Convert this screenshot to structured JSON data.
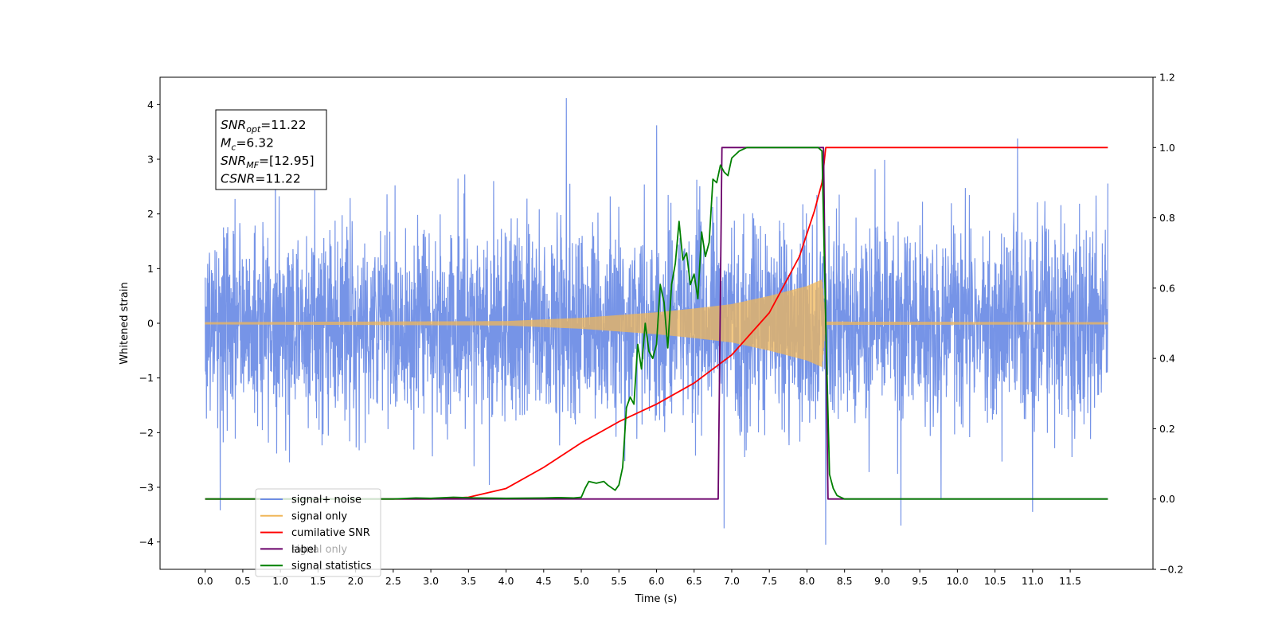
{
  "chart_data": {
    "type": "line",
    "xlabel": "Time (s)",
    "ylabel_left": "Whitened strain",
    "ylabel_right": "",
    "xlim": [
      -0.6,
      12.6
    ],
    "ylim_left": [
      -4.5,
      4.5
    ],
    "ylim_right": [
      -0.2,
      1.2
    ],
    "x_ticks": [
      0.0,
      0.5,
      1.0,
      1.5,
      2.0,
      2.5,
      3.0,
      3.5,
      4.0,
      4.5,
      5.0,
      5.5,
      6.0,
      6.5,
      7.0,
      7.5,
      8.0,
      8.5,
      9.0,
      9.5,
      10.0,
      10.5,
      11.0,
      11.5
    ],
    "x_tick_labels": [
      "0.0",
      "0.5",
      "1.0",
      "1.5",
      "2.0",
      "2.5",
      "3.0",
      "3.5",
      "4.0",
      "4.5",
      "5.0",
      "5.5",
      "6.0",
      "6.5",
      "7.0",
      "7.5",
      "8.0",
      "8.5",
      "9.0",
      "9.5",
      "10.0",
      "10.5",
      "11.0",
      "11.5"
    ],
    "y_ticks_left": [
      -4,
      -3,
      -2,
      -1,
      0,
      1,
      2,
      3,
      4
    ],
    "y_tick_labels_left": [
      "−4",
      "−3",
      "−2",
      "−1",
      "0",
      "1",
      "2",
      "3",
      "4"
    ],
    "y_ticks_right": [
      -0.2,
      0.0,
      0.2,
      0.4,
      0.6,
      0.8,
      1.0,
      1.2
    ],
    "y_tick_labels_right": [
      "−0.2",
      "0.0",
      "0.2",
      "0.4",
      "0.6",
      "0.8",
      "1.0",
      "1.2"
    ],
    "grid": false,
    "legend_position": "bottom-left",
    "annotation": {
      "lines": [
        {
          "sym": "SNR",
          "sub": "opt",
          "value": "=11.22"
        },
        {
          "sym": "M",
          "sub": "c",
          "value": "=6.32"
        },
        {
          "sym": "SNR",
          "sub": "MF",
          "value": "=[12.95]"
        },
        {
          "sym": "CSNR",
          "sub": "",
          "value": "=11.22"
        }
      ]
    },
    "series": [
      {
        "name": "signal+ noise",
        "axis": "left",
        "color": "#6f8ee6",
        "style": "noise",
        "x_range": [
          0.0,
          12.0
        ],
        "sigma": 0.9,
        "spikes": [
          [
            0.2,
            -3.42
          ],
          [
            4.8,
            4.12
          ],
          [
            6.0,
            3.62
          ],
          [
            6.9,
            -3.75
          ],
          [
            8.25,
            -4.05
          ],
          [
            9.25,
            -3.7
          ],
          [
            10.8,
            3.38
          ],
          [
            11.0,
            -3.45
          ]
        ]
      },
      {
        "name": "signal only",
        "axis": "left",
        "color": "#f0b75a",
        "style": "chirp",
        "envelope": {
          "t": [
            0.0,
            4.0,
            5.0,
            5.5,
            6.0,
            6.5,
            7.0,
            7.5,
            8.0,
            8.2,
            8.25,
            12.0
          ],
          "amp": [
            0.02,
            0.04,
            0.1,
            0.15,
            0.2,
            0.27,
            0.35,
            0.5,
            0.68,
            0.8,
            0.03,
            0.02
          ]
        }
      },
      {
        "name": "cumilative SNR",
        "axis": "right",
        "color": "#ff0000",
        "x": [
          0.0,
          3.0,
          3.5,
          4.0,
          4.5,
          5.0,
          5.5,
          6.0,
          6.5,
          7.0,
          7.5,
          7.9,
          8.1,
          8.2,
          8.25,
          12.0
        ],
        "y": [
          0.0,
          0.0,
          0.005,
          0.03,
          0.09,
          0.16,
          0.22,
          0.27,
          0.33,
          0.41,
          0.53,
          0.69,
          0.82,
          0.9,
          1.0,
          1.0
        ]
      },
      {
        "name": "label",
        "axis": "right",
        "color": "#6a006a",
        "x": [
          0.0,
          6.82,
          6.87,
          8.22,
          8.28,
          12.0
        ],
        "y": [
          0.0,
          0.0,
          1.0,
          1.0,
          0.0,
          0.0
        ]
      },
      {
        "name": "signal statistics",
        "axis": "right",
        "color": "#008000",
        "x": [
          0.0,
          2.5,
          2.8,
          3.0,
          3.3,
          3.6,
          4.0,
          4.5,
          4.7,
          4.9,
          5.0,
          5.05,
          5.1,
          5.2,
          5.3,
          5.35,
          5.45,
          5.5,
          5.55,
          5.6,
          5.65,
          5.7,
          5.75,
          5.8,
          5.85,
          5.9,
          5.95,
          6.0,
          6.05,
          6.1,
          6.15,
          6.2,
          6.25,
          6.3,
          6.35,
          6.4,
          6.45,
          6.5,
          6.55,
          6.6,
          6.65,
          6.7,
          6.75,
          6.8,
          6.85,
          6.9,
          6.95,
          7.0,
          7.05,
          7.1,
          7.2,
          7.3,
          7.4,
          7.5,
          7.6,
          7.7,
          7.8,
          7.9,
          8.0,
          8.1,
          8.15,
          8.2,
          8.25,
          8.3,
          8.35,
          8.4,
          8.45,
          8.5,
          8.6,
          12.0
        ],
        "y": [
          0.0,
          0.0,
          0.003,
          0.002,
          0.005,
          0.003,
          0.002,
          0.003,
          0.004,
          0.003,
          0.005,
          0.03,
          0.05,
          0.045,
          0.05,
          0.04,
          0.025,
          0.04,
          0.09,
          0.26,
          0.29,
          0.27,
          0.44,
          0.37,
          0.5,
          0.42,
          0.4,
          0.44,
          0.61,
          0.56,
          0.43,
          0.61,
          0.67,
          0.79,
          0.68,
          0.7,
          0.61,
          0.64,
          0.57,
          0.76,
          0.69,
          0.73,
          0.91,
          0.9,
          0.95,
          0.93,
          0.92,
          0.97,
          0.98,
          0.99,
          1.0,
          1.0,
          1.0,
          1.0,
          1.0,
          1.0,
          1.0,
          1.0,
          1.0,
          1.0,
          1.0,
          0.99,
          0.5,
          0.07,
          0.03,
          0.01,
          0.005,
          0.0,
          0.0,
          0.0
        ]
      }
    ],
    "legend_entries": [
      {
        "label": "signal+ noise",
        "color": "#6f8ee6"
      },
      {
        "label": "signal only",
        "color": "#f0b75a"
      },
      {
        "label": "cumilative SNR",
        "color": "#ff0000"
      },
      {
        "label": "label",
        "color": "#6a006a"
      },
      {
        "label": "signal statistics",
        "color": "#008000"
      }
    ],
    "legend_ghost_entries": [
      "signal only"
    ]
  }
}
